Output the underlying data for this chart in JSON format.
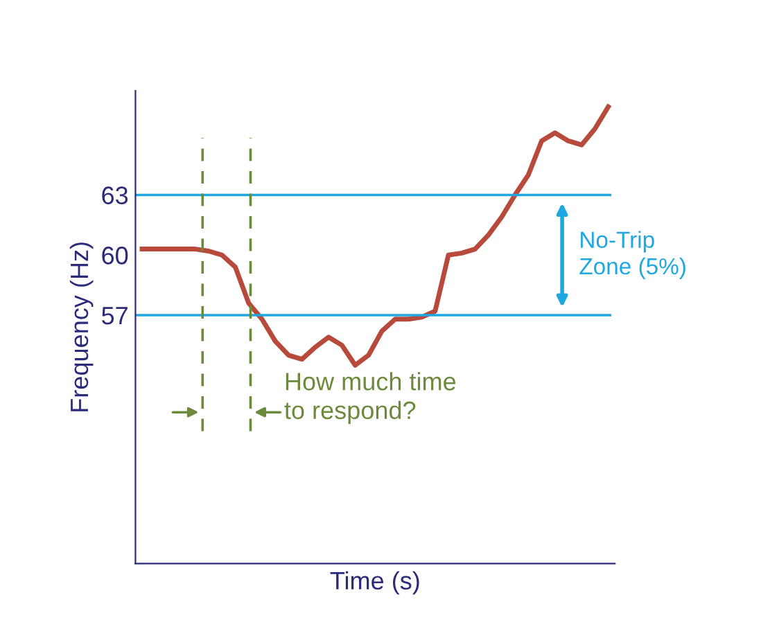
{
  "chart_data": {
    "type": "line",
    "xlabel": "Time (s)",
    "ylabel": "Frequency (Hz)",
    "categories": [
      null,
      null,
      null,
      null,
      null,
      null,
      null,
      null,
      null,
      null,
      null,
      null,
      null,
      null,
      null,
      null,
      null,
      null,
      null,
      null,
      null,
      null,
      null,
      null,
      null,
      null,
      null,
      null,
      null,
      null,
      null,
      null,
      null,
      null,
      null,
      null
    ],
    "series": [
      {
        "color": "#b84a3c",
        "values": [
          60.3,
          60.3,
          60.3,
          60.3,
          60.3,
          60.2,
          60.0,
          59.4,
          57.6,
          56.8,
          55.7,
          55.0,
          54.8,
          55.4,
          55.9,
          55.5,
          54.5,
          55.0,
          56.2,
          56.8,
          56.8,
          56.9,
          57.2,
          60.0,
          60.1,
          60.3,
          61.0,
          61.9,
          63.0,
          64.0,
          65.7,
          66.1,
          65.7,
          65.5,
          66.3,
          67.4
        ]
      }
    ],
    "ylim": [
      44.6,
      68.2
    ],
    "yticks": [
      57,
      60,
      63
    ],
    "tick_labels": "y",
    "grid": false,
    "line_style": "solid",
    "marker": "none",
    "ref_lines": [
      {
        "axis": "y",
        "value": 63,
        "color": "#1ea7e1",
        "line_style": "solid"
      },
      {
        "axis": "y",
        "value": 57,
        "color": "#1ea7e1",
        "line_style": "solid"
      }
    ],
    "annotations": [
      "No-Trip\nZone (5%)",
      "How much time\nto respond?"
    ]
  }
}
